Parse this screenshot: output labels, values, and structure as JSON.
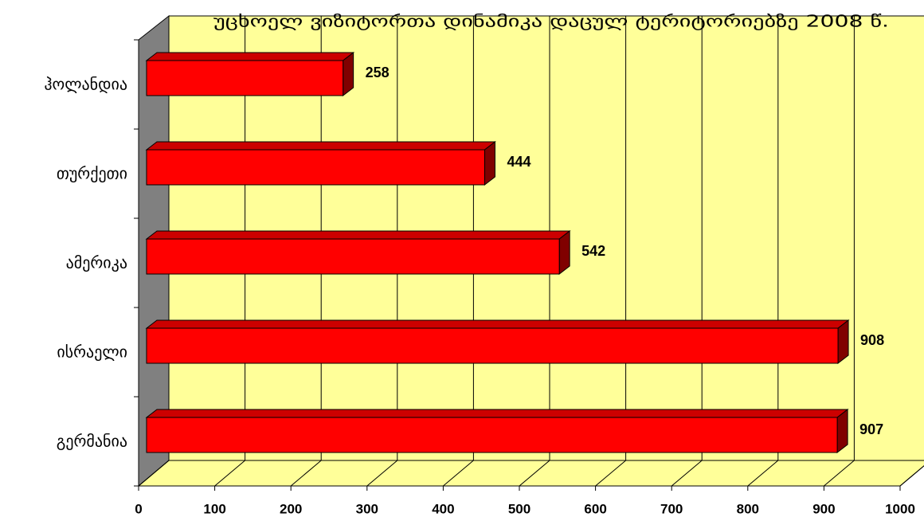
{
  "chart_data": {
    "type": "bar",
    "title": "უცხოელ ვიზიტორთა დინამიკა დაცულ ტერიტორიებზე 2008 წ.",
    "categories": [
      "ჰოლანდია",
      "თურქეთი",
      "ამერიკა",
      "ისრაელი",
      "გერმანია"
    ],
    "values": [
      258,
      444,
      542,
      908,
      907
    ],
    "color": "#ff0000",
    "xlim": [
      0,
      1000
    ],
    "xticks": [
      0,
      100,
      200,
      300,
      400,
      500,
      600,
      700,
      800,
      900,
      1000
    ],
    "grid": true
  }
}
